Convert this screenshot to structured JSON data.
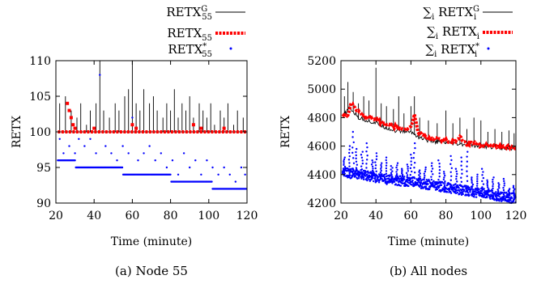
{
  "chart_data": [
    {
      "type": "line",
      "caption": "(a) Node 55",
      "xlabel": "Time (minute)",
      "ylabel": "RETX",
      "xlim": [
        20,
        120
      ],
      "ylim": [
        90,
        110
      ],
      "xticks": [
        20,
        40,
        60,
        80,
        100,
        120
      ],
      "yticks": [
        90,
        95,
        100,
        105,
        110
      ],
      "legend": [
        "RETX^G_55",
        "RETX_55",
        "RETX*_55"
      ],
      "series": [
        {
          "name": "RETX^G_55",
          "style": "line",
          "color": "#000000",
          "baseline": 100,
          "spikes": [
            [
              22,
              104
            ],
            [
              25,
              105
            ],
            [
              28,
              103
            ],
            [
              31,
              102
            ],
            [
              33,
              104
            ],
            [
              36,
              101
            ],
            [
              38,
              103
            ],
            [
              41,
              104
            ],
            [
              43,
              110
            ],
            [
              45,
              103
            ],
            [
              48,
              102
            ],
            [
              51,
              104
            ],
            [
              53,
              103
            ],
            [
              56,
              105
            ],
            [
              58,
              106
            ],
            [
              60,
              110
            ],
            [
              62,
              104
            ],
            [
              64,
              103
            ],
            [
              66,
              106
            ],
            [
              69,
              104
            ],
            [
              71,
              105
            ],
            [
              73,
              103
            ],
            [
              76,
              102
            ],
            [
              78,
              104
            ],
            [
              80,
              103
            ],
            [
              82,
              106
            ],
            [
              84,
              102
            ],
            [
              86,
              104
            ],
            [
              88,
              103
            ],
            [
              90,
              105
            ],
            [
              92,
              102
            ],
            [
              95,
              104
            ],
            [
              97,
              103
            ],
            [
              99,
              102
            ],
            [
              101,
              104
            ],
            [
              103,
              101
            ],
            [
              106,
              103
            ],
            [
              108,
              102
            ],
            [
              110,
              104
            ],
            [
              113,
              101
            ],
            [
              115,
              103
            ],
            [
              118,
              102
            ]
          ]
        },
        {
          "name": "RETX_55",
          "style": "dashed",
          "color": "#ff0000",
          "baseline": 100,
          "bumps": [
            [
              26,
              104
            ],
            [
              27,
              103
            ],
            [
              28,
              102
            ],
            [
              29,
              101
            ],
            [
              30,
              100.5
            ],
            [
              40,
              100.5
            ],
            [
              60,
              101
            ],
            [
              62,
              100.5
            ],
            [
              92,
              101
            ],
            [
              96,
              100.5
            ],
            [
              108,
              100.5
            ]
          ]
        },
        {
          "name": "RETX*_55",
          "style": "points",
          "color": "#0000ff",
          "steps": [
            [
              20,
              96
            ],
            [
              30,
              95
            ],
            [
              55,
              94
            ],
            [
              80,
              93
            ],
            [
              102,
              92
            ],
            [
              120,
              92
            ]
          ],
          "outliers": [
            [
              22,
              99
            ],
            [
              24,
              97
            ],
            [
              27,
              98
            ],
            [
              30,
              97
            ],
            [
              32,
              99
            ],
            [
              35,
              98
            ],
            [
              38,
              99
            ],
            [
              41,
              97
            ],
            [
              43,
              108
            ],
            [
              46,
              98
            ],
            [
              49,
              97
            ],
            [
              52,
              96
            ],
            [
              55,
              98
            ],
            [
              58,
              97
            ],
            [
              60,
              102
            ],
            [
              63,
              96
            ],
            [
              66,
              97
            ],
            [
              69,
              98
            ],
            [
              72,
              96
            ],
            [
              75,
              97
            ],
            [
              78,
              95
            ],
            [
              81,
              96
            ],
            [
              84,
              94
            ],
            [
              87,
              97
            ],
            [
              90,
              95
            ],
            [
              93,
              96
            ],
            [
              96,
              94
            ],
            [
              99,
              96
            ],
            [
              102,
              95
            ],
            [
              105,
              94
            ],
            [
              108,
              95
            ],
            [
              111,
              94
            ],
            [
              114,
              93
            ],
            [
              117,
              95
            ],
            [
              119,
              94
            ]
          ]
        }
      ]
    },
    {
      "type": "line",
      "caption": "(b) All nodes",
      "xlabel": "Time (minute)",
      "ylabel": "RETX",
      "xlim": [
        20,
        120
      ],
      "ylim": [
        4200,
        5200
      ],
      "xticks": [
        20,
        40,
        60,
        80,
        100,
        120
      ],
      "yticks": [
        4200,
        4400,
        4600,
        4800,
        5000,
        5200
      ],
      "legend": [
        "∑i RETX^G_i",
        "∑i RETX_i",
        "∑i RETX*_i"
      ],
      "series": [
        {
          "name": "∑i RETX^G_i",
          "style": "line",
          "color": "#000000",
          "base": [
            [
              20,
              4790
            ],
            [
              25,
              4870
            ],
            [
              30,
              4800
            ],
            [
              40,
              4760
            ],
            [
              50,
              4710
            ],
            [
              60,
              4700
            ],
            [
              65,
              4660
            ],
            [
              70,
              4640
            ],
            [
              80,
              4620
            ],
            [
              90,
              4610
            ],
            [
              100,
              4600
            ],
            [
              110,
              4590
            ],
            [
              120,
              4585
            ]
          ],
          "spikes": [
            [
              22,
              4950
            ],
            [
              24,
              5050
            ],
            [
              27,
              4980
            ],
            [
              30,
              4900
            ],
            [
              33,
              4950
            ],
            [
              36,
              4920
            ],
            [
              40,
              5150
            ],
            [
              43,
              4900
            ],
            [
              46,
              4880
            ],
            [
              50,
              4860
            ],
            [
              53,
              4950
            ],
            [
              56,
              4830
            ],
            [
              60,
              4880
            ],
            [
              62,
              4950
            ],
            [
              65,
              4800
            ],
            [
              70,
              4780
            ],
            [
              75,
              4760
            ],
            [
              80,
              4850
            ],
            [
              84,
              4760
            ],
            [
              88,
              4800
            ],
            [
              92,
              4720
            ],
            [
              96,
              4800
            ],
            [
              100,
              4780
            ],
            [
              104,
              4700
            ],
            [
              108,
              4720
            ],
            [
              112,
              4700
            ],
            [
              116,
              4710
            ],
            [
              119,
              4690
            ]
          ]
        },
        {
          "name": "∑i RETX_i",
          "style": "dashed",
          "color": "#ff0000",
          "base": [
            [
              20,
              4800
            ],
            [
              24,
              4820
            ],
            [
              26,
              4910
            ],
            [
              28,
              4860
            ],
            [
              32,
              4820
            ],
            [
              36,
              4800
            ],
            [
              40,
              4790
            ],
            [
              44,
              4760
            ],
            [
              50,
              4740
            ],
            [
              55,
              4720
            ],
            [
              60,
              4730
            ],
            [
              62,
              4820
            ],
            [
              64,
              4700
            ],
            [
              66,
              4690
            ],
            [
              70,
              4650
            ],
            [
              75,
              4650
            ],
            [
              80,
              4640
            ],
            [
              85,
              4630
            ],
            [
              88,
              4660
            ],
            [
              92,
              4610
            ],
            [
              96,
              4630
            ],
            [
              100,
              4600
            ],
            [
              105,
              4610
            ],
            [
              110,
              4600
            ],
            [
              115,
              4595
            ],
            [
              120,
              4590
            ]
          ]
        },
        {
          "name": "∑i RETX*_i",
          "style": "points",
          "color": "#0000ff",
          "base": [
            [
              20,
              4420
            ],
            [
              30,
              4400
            ],
            [
              40,
              4380
            ],
            [
              50,
              4360
            ],
            [
              60,
              4350
            ],
            [
              70,
              4330
            ],
            [
              80,
              4310
            ],
            [
              90,
              4290
            ],
            [
              100,
              4270
            ],
            [
              110,
              4250
            ],
            [
              120,
              4230
            ]
          ],
          "spikes": [
            [
              22,
              4520
            ],
            [
              25,
              4600
            ],
            [
              27,
              4700
            ],
            [
              29,
              4580
            ],
            [
              32,
              4560
            ],
            [
              35,
              4620
            ],
            [
              38,
              4500
            ],
            [
              40,
              4550
            ],
            [
              43,
              4480
            ],
            [
              46,
              4520
            ],
            [
              49,
              4460
            ],
            [
              52,
              4480
            ],
            [
              55,
              4440
            ],
            [
              58,
              4470
            ],
            [
              60,
              4540
            ],
            [
              62,
              4620
            ],
            [
              65,
              4430
            ],
            [
              68,
              4450
            ],
            [
              72,
              4480
            ],
            [
              76,
              4500
            ],
            [
              79,
              4420
            ],
            [
              83,
              4530
            ],
            [
              86,
              4440
            ],
            [
              89,
              4520
            ],
            [
              92,
              4560
            ],
            [
              95,
              4380
            ],
            [
              98,
              4400
            ],
            [
              101,
              4440
            ],
            [
              104,
              4360
            ],
            [
              107,
              4380
            ],
            [
              110,
              4340
            ],
            [
              113,
              4370
            ],
            [
              116,
              4300
            ],
            [
              119,
              4320
            ]
          ]
        }
      ]
    }
  ]
}
